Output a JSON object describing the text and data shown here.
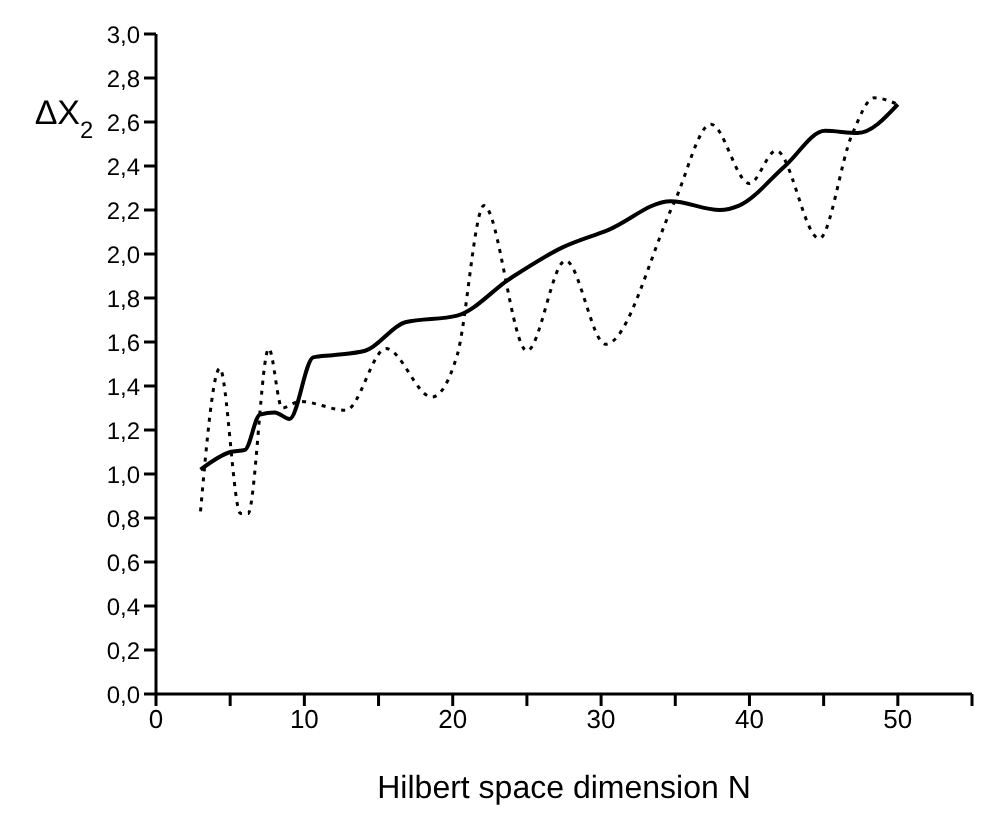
{
  "chart_data": {
    "type": "line",
    "xlabel": "Hilbert space dimension N",
    "ylabel": "ΔX$_{2}$",
    "xlim": [
      0,
      55
    ],
    "xticks": [
      0,
      {
        "value": 5,
        "label": null
      },
      10,
      {
        "value": 15,
        "label": null
      },
      20,
      {
        "value": 25,
        "label": null
      },
      30,
      {
        "value": 35,
        "label": null
      },
      40,
      {
        "value": 45,
        "label": null
      },
      50,
      {
        "value": 55,
        "label": null
      }
    ],
    "ylim": [
      0,
      3
    ],
    "yticks": [
      {
        "value": 0,
        "label": "0,0"
      },
      {
        "value": 0.2,
        "label": "0,2"
      },
      {
        "value": 0.4,
        "label": "0,4"
      },
      {
        "value": 0.6,
        "label": "0,6"
      },
      {
        "value": 0.8,
        "label": "0,8"
      },
      {
        "value": 1,
        "label": "1,0"
      },
      {
        "value": 1.2,
        "label": "1,2"
      },
      {
        "value": 1.4,
        "label": "1,4"
      },
      {
        "value": 1.6,
        "label": "1,6"
      },
      {
        "value": 1.8,
        "label": "1,8"
      },
      {
        "value": 2,
        "label": "2,0"
      },
      {
        "value": 2.2,
        "label": "2,2"
      },
      {
        "value": 2.4,
        "label": "2,4"
      },
      {
        "value": 2.6,
        "label": "2,6"
      },
      {
        "value": 2.8,
        "label": "2,8"
      },
      {
        "value": 3,
        "label": "3,0"
      }
    ],
    "grid": false,
    "legend": false,
    "marker": "none",
    "series": [
      {
        "color": "#000000",
        "line_style": "solid",
        "x": [
          3,
          5,
          6,
          7,
          8,
          9,
          10.6,
          11.9,
          14.1,
          16.8,
          20.3,
          23.9,
          27.4,
          30.5,
          34.7,
          38,
          39.3,
          42.4,
          45.1,
          47.3,
          50
        ],
        "values": [
          1.02,
          1.1,
          1.11,
          1.27,
          1.28,
          1.25,
          1.53,
          1.54,
          1.56,
          1.69,
          1.72,
          1.89,
          2.03,
          2.11,
          2.24,
          2.2,
          2.22,
          2.4,
          2.56,
          2.55,
          2.68
        ]
      },
      {
        "color": "#000000",
        "line_style": "dotted",
        "x": [
          3,
          4.3,
          5.7,
          6.2,
          7.6,
          8.5,
          9.7,
          12.8,
          15.5,
          18.6,
          20.3,
          22.1,
          25,
          27.6,
          30.3,
          34.9,
          37.4,
          40,
          41.8,
          44.7,
          46.9,
          48.4,
          50
        ],
        "values": [
          0.83,
          1.48,
          0.82,
          0.82,
          1.57,
          1.3,
          1.33,
          1.29,
          1.57,
          1.35,
          1.54,
          2.22,
          1.56,
          1.97,
          1.59,
          2.23,
          2.59,
          2.32,
          2.47,
          2.07,
          2.54,
          2.71,
          2.68
        ]
      }
    ]
  }
}
